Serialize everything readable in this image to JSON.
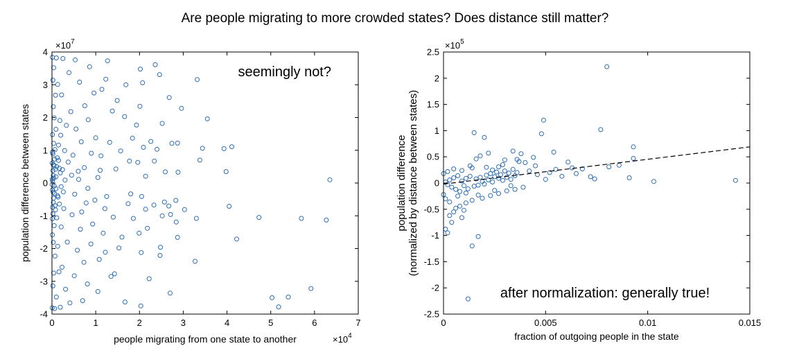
{
  "figure": {
    "title": "Are people migrating to more crowded states? Does distance still matter?",
    "marker_color": "#2a6db5"
  },
  "chart_data": [
    {
      "type": "scatter",
      "annotation": "seemingly not?",
      "xlabel": "people migrating from one state to another",
      "ylabel": "population difference between states",
      "x_multiplier": "×10",
      "x_exponent": "4",
      "y_multiplier": "×10",
      "y_exponent": "7",
      "xlim": [
        0,
        70000
      ],
      "ylim": [
        -40000000,
        40000000
      ],
      "xticks": [
        0,
        10000,
        20000,
        30000,
        40000,
        50000,
        60000,
        70000
      ],
      "xtick_labels": [
        "0",
        "1",
        "2",
        "3",
        "4",
        "5",
        "6",
        "7"
      ],
      "yticks": [
        -40000000,
        -30000000,
        -20000000,
        -10000000,
        0,
        10000000,
        20000000,
        30000000,
        40000000
      ],
      "ytick_labels": [
        "-4",
        "-3",
        "-2",
        "-1",
        "0",
        "1",
        "2",
        "3",
        "4"
      ],
      "grid": false,
      "legend": "none",
      "points": [
        [
          63500,
          1000000
        ],
        [
          62700,
          -11300000
        ],
        [
          57000,
          -10800000
        ],
        [
          59200,
          -32200000
        ],
        [
          54000,
          -34800000
        ],
        [
          51800,
          -37800000
        ],
        [
          50300,
          -35000000
        ],
        [
          47300,
          -10500000
        ],
        [
          42200,
          -17100000
        ],
        [
          40500,
          -7100000
        ],
        [
          41100,
          11100000
        ],
        [
          39300,
          10500000
        ],
        [
          39800,
          3500000
        ],
        [
          35500,
          19600000
        ],
        [
          34400,
          10600000
        ],
        [
          33800,
          7000000
        ],
        [
          33200,
          31600000
        ],
        [
          33000,
          -10800000
        ],
        [
          32700,
          -23900000
        ],
        [
          30300,
          -8100000
        ],
        [
          29600,
          22800000
        ],
        [
          28800,
          3300000
        ],
        [
          28700,
          12200000
        ],
        [
          28400,
          -11900000
        ],
        [
          28700,
          -16600000
        ],
        [
          28300,
          -5300000
        ],
        [
          27400,
          12100000
        ],
        [
          27100,
          -9600000
        ],
        [
          27000,
          -33600000
        ],
        [
          26700,
          -7000000
        ],
        [
          26800,
          26100000
        ],
        [
          25900,
          3400000
        ],
        [
          25700,
          -5800000
        ],
        [
          25200,
          18200000
        ],
        [
          25200,
          -10000000
        ],
        [
          24800,
          -19600000
        ],
        [
          24700,
          -22100000
        ],
        [
          24600,
          33100000
        ],
        [
          24000,
          10300000
        ],
        [
          23600,
          36100000
        ],
        [
          23300,
          -6700000
        ],
        [
          23400,
          6700000
        ],
        [
          22600,
          12700000
        ],
        [
          22200,
          -29200000
        ],
        [
          21800,
          -13800000
        ],
        [
          21400,
          2100000
        ],
        [
          21400,
          -8000000
        ],
        [
          20900,
          10900000
        ],
        [
          20700,
          30600000
        ],
        [
          20500,
          -4100000
        ],
        [
          20300,
          -37500000
        ],
        [
          20200,
          34800000
        ],
        [
          20400,
          -21200000
        ],
        [
          20100,
          23400000
        ],
        [
          19900,
          -15300000
        ],
        [
          19600,
          6300000
        ],
        [
          19300,
          17700000
        ],
        [
          18600,
          -10800000
        ],
        [
          18400,
          13700000
        ],
        [
          18000,
          -3300000
        ],
        [
          17700,
          6700000
        ],
        [
          17400,
          -6300000
        ],
        [
          16900,
          30000000
        ],
        [
          16700,
          -36300000
        ],
        [
          16600,
          20300000
        ],
        [
          16000,
          -16500000
        ],
        [
          15700,
          9800000
        ],
        [
          15300,
          -19800000
        ],
        [
          14900,
          25200000
        ],
        [
          14600,
          4300000
        ],
        [
          14300,
          -27700000
        ],
        [
          14000,
          -10400000
        ],
        [
          13800,
          22000000
        ],
        [
          13500,
          -28500000
        ],
        [
          13200,
          12400000
        ],
        [
          12700,
          37300000
        ],
        [
          12500,
          -4100000
        ],
        [
          12300,
          31700000
        ],
        [
          12200,
          -21100000
        ],
        [
          11700,
          -15300000
        ],
        [
          11400,
          28600000
        ],
        [
          11200,
          8300000
        ],
        [
          10800,
          -23300000
        ],
        [
          10500,
          -33100000
        ],
        [
          10500,
          1700000
        ],
        [
          10000,
          13800000
        ],
        [
          9600,
          27500000
        ],
        [
          9300,
          -12500000
        ],
        [
          8900,
          -18600000
        ],
        [
          8600,
          35500000
        ],
        [
          8300,
          19300000
        ],
        [
          8100,
          -30800000
        ],
        [
          7800,
          -6100000
        ],
        [
          7500,
          23600000
        ],
        [
          7300,
          -24200000
        ],
        [
          7000,
          -35900000
        ],
        [
          6700,
          12600000
        ],
        [
          6500,
          -14100000
        ],
        [
          6300,
          30800000
        ],
        [
          6000,
          3600000
        ],
        [
          5800,
          -20500000
        ],
        [
          5500,
          16500000
        ],
        [
          5300,
          37600000
        ],
        [
          5100,
          -28300000
        ],
        [
          4800,
          8500000
        ],
        [
          4600,
          -9700000
        ],
        [
          4300,
          21800000
        ],
        [
          4100,
          -36600000
        ],
        [
          3900,
          33700000
        ],
        [
          3700,
          6400000
        ],
        [
          3500,
          -18000000
        ],
        [
          3300,
          17600000
        ],
        [
          3100,
          -32400000
        ],
        [
          2900,
          9900000
        ],
        [
          2700,
          -7800000
        ],
        [
          2500,
          38000000
        ],
        [
          2300,
          -25700000
        ],
        [
          2200,
          26900000
        ],
        [
          2100,
          -13400000
        ],
        [
          2000,
          14600000
        ],
        [
          1900,
          -37900000
        ],
        [
          1800,
          19100000
        ],
        [
          1700,
          4500000
        ],
        [
          1600,
          -27100000
        ],
        [
          1500,
          11600000
        ],
        [
          1400,
          -4300000
        ],
        [
          1300,
          -19300000
        ],
        [
          1300,
          30100000
        ],
        [
          1200,
          7700000
        ],
        [
          1100,
          -10600000
        ],
        [
          1000,
          38200000
        ],
        [
          1000,
          -34800000
        ],
        [
          900,
          16400000
        ],
        [
          900,
          1900000
        ],
        [
          800,
          -8200000
        ],
        [
          800,
          26800000
        ],
        [
          700,
          -22300000
        ],
        [
          700,
          10200000
        ],
        [
          600,
          -3200000
        ],
        [
          600,
          -38300000
        ],
        [
          500,
          19900000
        ],
        [
          500,
          5400000
        ],
        [
          500,
          -13000000
        ],
        [
          400,
          35200000
        ],
        [
          400,
          -27500000
        ],
        [
          400,
          12100000
        ],
        [
          300,
          -5900000
        ],
        [
          300,
          2300000
        ],
        [
          300,
          23300000
        ],
        [
          300,
          -18100000
        ],
        [
          200,
          8900000
        ],
        [
          200,
          -9400000
        ],
        [
          200,
          -31400000
        ],
        [
          200,
          31400000
        ],
        [
          100,
          700000
        ],
        [
          100,
          -2100000
        ],
        [
          100,
          14800000
        ],
        [
          100,
          -15800000
        ],
        [
          100,
          38400000
        ],
        [
          50,
          -38100000
        ],
        [
          3000,
          900000
        ],
        [
          2600,
          -2700000
        ],
        [
          2400,
          4100000
        ],
        [
          2100,
          -1100000
        ],
        [
          1900,
          3100000
        ],
        [
          1700,
          -6400000
        ],
        [
          1500,
          6900000
        ],
        [
          1300,
          -3900000
        ],
        [
          1100,
          5000000
        ],
        [
          900,
          -1700000
        ],
        [
          800,
          4200000
        ],
        [
          700,
          -6900000
        ],
        [
          600,
          7300000
        ],
        [
          500,
          -900000
        ],
        [
          400,
          1500000
        ],
        [
          350,
          -4600000
        ],
        [
          300,
          5600000
        ],
        [
          250,
          -2800000
        ],
        [
          200,
          3800000
        ],
        [
          150,
          -7400000
        ],
        [
          100,
          9400000
        ],
        [
          80,
          -10900000
        ],
        [
          60,
          1200000
        ],
        [
          50,
          -500000
        ],
        [
          40,
          6100000
        ],
        [
          4500,
          2400000
        ],
        [
          5200,
          -3400000
        ],
        [
          6100,
          1100000
        ],
        [
          6800,
          -8800000
        ],
        [
          7400,
          4700000
        ],
        [
          8200,
          -1600000
        ],
        [
          9000,
          9100000
        ],
        [
          9800,
          -5200000
        ],
        [
          11000,
          3900000
        ],
        [
          12100,
          -7800000
        ]
      ]
    },
    {
      "type": "scatter",
      "annotation": "after normalization:  generally true!",
      "xlabel": "fraction of outgoing people in the state",
      "ylabel_line1": "population difference",
      "ylabel_line2": "(normalized by distance between states)",
      "y_multiplier": "×10",
      "y_exponent": "5",
      "xlim": [
        0,
        0.015
      ],
      "ylim": [
        -250000,
        250000
      ],
      "xticks": [
        0,
        0.005,
        0.01,
        0.015
      ],
      "xtick_labels": [
        "0",
        "0.005",
        "0.01",
        "0.015"
      ],
      "yticks": [
        -250000,
        -200000,
        -150000,
        -100000,
        -50000,
        0,
        50000,
        100000,
        150000,
        200000,
        250000
      ],
      "ytick_labels": [
        "-2.5",
        "-2",
        "-1.5",
        "-1",
        "-0.5",
        "0",
        "0.5",
        "1",
        "1.5",
        "2",
        "2.5"
      ],
      "grid": false,
      "legend": "none",
      "fit_line": {
        "style": "dashed",
        "x": [
          0,
          0.015
        ],
        "y": [
          -2000,
          69000
        ]
      },
      "points": [
        [
          0.008,
          222000
        ],
        [
          0.0077,
          102000
        ],
        [
          0.0049,
          120000
        ],
        [
          0.0015,
          96000
        ],
        [
          0.002,
          87000
        ],
        [
          0.0093,
          69000
        ],
        [
          0.0093,
          47000
        ],
        [
          0.0054,
          59000
        ],
        [
          0.0048,
          94000
        ],
        [
          0.0018,
          52000
        ],
        [
          0.0036,
          45000
        ],
        [
          0.0044,
          49000
        ],
        [
          0.004,
          39000
        ],
        [
          0.0061,
          40000
        ],
        [
          0.0063,
          29000
        ],
        [
          0.0068,
          27000
        ],
        [
          0.0072,
          12000
        ],
        [
          0.0074,
          8000
        ],
        [
          0.0081,
          31000
        ],
        [
          0.0086,
          34000
        ],
        [
          0.0091,
          10000
        ],
        [
          0.0103,
          3000
        ],
        [
          0.0143,
          5000
        ],
        [
          0.0058,
          13000
        ],
        [
          0.0052,
          20000
        ],
        [
          0.005,
          7000
        ],
        [
          0.0046,
          16000
        ],
        [
          0.0038,
          56000
        ],
        [
          0.0034,
          61000
        ],
        [
          0.003,
          44000
        ],
        [
          0.0027,
          31000
        ],
        [
          0.0024,
          25000
        ],
        [
          0.0022,
          57000
        ],
        [
          0.0016,
          46000
        ],
        [
          0.0013,
          33000
        ],
        [
          0.0012,
          -221000
        ],
        [
          0.0014,
          -120000
        ],
        [
          0.0017,
          -102000
        ],
        [
          0.0002,
          -95000
        ],
        [
          0.0001,
          -88000
        ],
        [
          0.0005,
          -55000
        ],
        [
          0.0008,
          -44000
        ],
        [
          0.0011,
          -38000
        ],
        [
          0.0014,
          -33000
        ],
        [
          0.0019,
          -29000
        ],
        [
          0.0023,
          -24000
        ],
        [
          0.0027,
          -20000
        ],
        [
          0.0031,
          -15000
        ],
        [
          0.0035,
          -12000
        ],
        [
          0.0039,
          -8000
        ],
        [
          0.0003,
          -62000
        ],
        [
          0.0006,
          -48000
        ],
        [
          0.0009,
          -66000
        ],
        [
          0.0004,
          -75000
        ],
        [
          0.001,
          -52000
        ],
        [
          0.0001,
          2000
        ],
        [
          0.0002,
          -3000
        ],
        [
          0.0003,
          6000
        ],
        [
          0.0004,
          -8000
        ],
        [
          0.0005,
          10000
        ],
        [
          0.0006,
          -12000
        ],
        [
          0.0007,
          14000
        ],
        [
          0.0008,
          -16000
        ],
        [
          0.0009,
          4000
        ],
        [
          0.001,
          -5000
        ],
        [
          0.0011,
          9000
        ],
        [
          0.0012,
          -11000
        ],
        [
          0.0013,
          13000
        ],
        [
          0.0015,
          -6000
        ],
        [
          0.0016,
          8000
        ],
        [
          0.0017,
          -4000
        ],
        [
          0.0018,
          11000
        ],
        [
          0.0019,
          3000
        ],
        [
          0.002,
          -2000
        ],
        [
          0.0021,
          15000
        ],
        [
          0.0022,
          6000
        ],
        [
          0.0023,
          18000
        ],
        [
          0.0024,
          2000
        ],
        [
          0.0025,
          12000
        ],
        [
          0.0026,
          21000
        ],
        [
          0.0027,
          9000
        ],
        [
          0.0028,
          16000
        ],
        [
          0.0029,
          5000
        ],
        [
          0.003,
          23000
        ],
        [
          0.0031,
          11000
        ],
        [
          0.0032,
          19000
        ],
        [
          0.0033,
          7000
        ],
        [
          0.0034,
          26000
        ],
        [
          0.0035,
          14000
        ],
        [
          0.0036,
          20000
        ],
        [
          0.0,
          18000
        ],
        [
          0.0,
          -22000
        ],
        [
          0.0001,
          -30000
        ],
        [
          0.0002,
          22000
        ],
        [
          0.0003,
          -36000
        ],
        [
          0.0005,
          27000
        ],
        [
          0.0007,
          -25000
        ],
        [
          0.0009,
          24000
        ],
        [
          0.0011,
          -19000
        ],
        [
          0.0014,
          29000
        ],
        [
          0.0017,
          -23000
        ],
        [
          0.0021,
          30000
        ],
        [
          0.0025,
          -14000
        ],
        [
          0.0029,
          35000
        ],
        [
          0.0033,
          -5000
        ],
        [
          0.0037,
          41000
        ],
        [
          0.0042,
          23000
        ],
        [
          0.0045,
          33000
        ],
        [
          0.0055,
          26000
        ],
        [
          0.0065,
          18000
        ]
      ]
    }
  ]
}
